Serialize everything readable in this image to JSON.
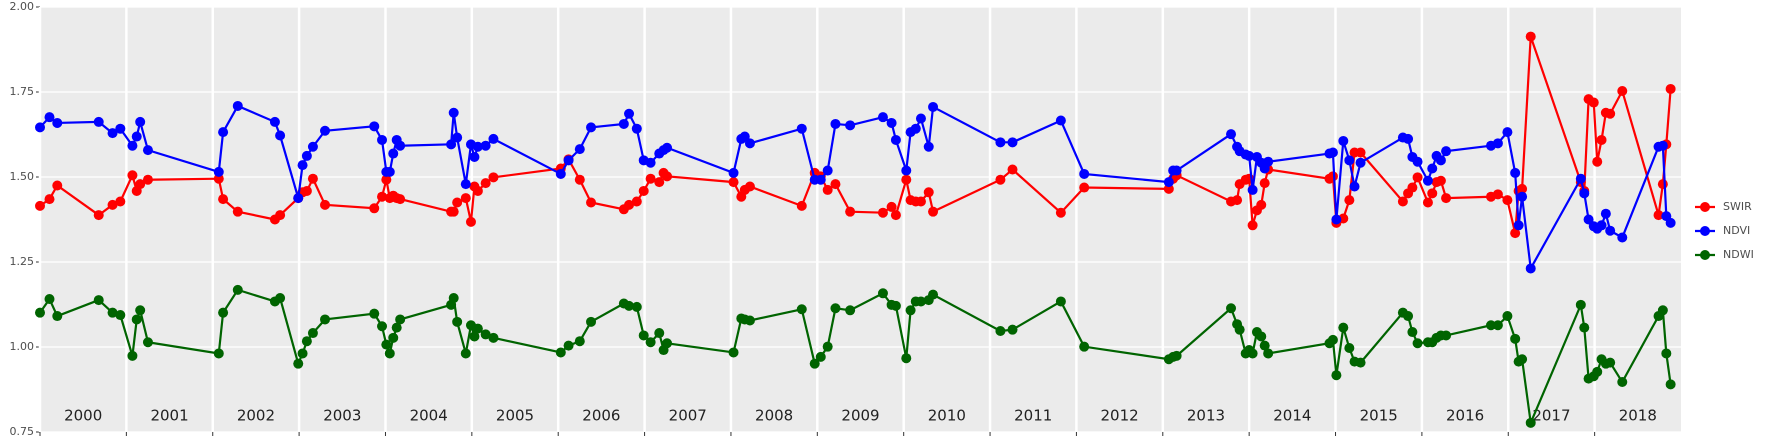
{
  "chart_data": {
    "type": "line",
    "x": [
      2000.0,
      2000.11,
      2000.2,
      2000.68,
      2000.84,
      2000.93,
      2001.07,
      2001.12,
      2001.16,
      2001.25,
      2002.07,
      2002.12,
      2002.29,
      2002.72,
      2002.78,
      2002.99,
      2003.04,
      2003.09,
      2003.16,
      2003.3,
      2003.87,
      2003.96,
      2004.01,
      2004.05,
      2004.09,
      2004.13,
      2004.17,
      2004.76,
      2004.79,
      2004.83,
      2004.93,
      2004.99,
      2005.03,
      2005.07,
      2005.16,
      2005.25,
      2006.03,
      2006.12,
      2006.25,
      2006.38,
      2006.76,
      2006.82,
      2006.91,
      2006.99,
      2007.07,
      2007.17,
      2007.22,
      2007.26,
      2008.03,
      2008.12,
      2008.16,
      2008.22,
      2008.82,
      2008.97,
      2009.04,
      2009.12,
      2009.21,
      2009.38,
      2009.76,
      2009.86,
      2009.91,
      2010.03,
      2010.08,
      2010.14,
      2010.2,
      2010.29,
      2010.34,
      2011.12,
      2011.26,
      2011.82,
      2012.09,
      2013.07,
      2013.12,
      2013.16,
      2013.79,
      2013.86,
      2013.89,
      2013.96,
      2014.0,
      2014.04,
      2014.09,
      2014.14,
      2014.18,
      2014.22,
      2014.93,
      2014.97,
      2015.01,
      2015.09,
      2015.16,
      2015.22,
      2015.29,
      2015.78,
      2015.84,
      2015.89,
      2015.95,
      2016.07,
      2016.12,
      2016.17,
      2016.22,
      2016.28,
      2016.8,
      2016.88,
      2016.99,
      2017.08,
      2017.12,
      2017.16,
      2017.26,
      2017.84,
      2017.88,
      2017.93,
      2017.99,
      2018.03,
      2018.08,
      2018.13,
      2018.18,
      2018.32,
      2018.74,
      2018.79,
      2018.83,
      2018.88
    ],
    "series": [
      {
        "name": "SWIR",
        "color": "#ff0000",
        "values": [
          1.415,
          1.435,
          1.475,
          1.388,
          1.418,
          1.428,
          1.505,
          1.459,
          1.479,
          1.492,
          1.495,
          1.435,
          1.398,
          1.375,
          1.388,
          1.438,
          1.455,
          1.459,
          1.495,
          1.418,
          1.408,
          1.442,
          1.492,
          1.438,
          1.445,
          1.438,
          1.435,
          1.398,
          1.398,
          1.425,
          1.438,
          1.368,
          1.472,
          1.459,
          1.482,
          1.499,
          1.525,
          1.552,
          1.492,
          1.425,
          1.405,
          1.418,
          1.428,
          1.459,
          1.495,
          1.485,
          1.512,
          1.502,
          1.485,
          1.442,
          1.462,
          1.472,
          1.415,
          1.512,
          1.502,
          1.462,
          1.479,
          1.398,
          1.395,
          1.412,
          1.388,
          1.492,
          1.432,
          1.428,
          1.428,
          1.455,
          1.398,
          1.492,
          1.522,
          1.395,
          1.469,
          1.465,
          1.495,
          1.505,
          1.428,
          1.432,
          1.479,
          1.492,
          1.495,
          1.358,
          1.402,
          1.418,
          1.482,
          1.522,
          1.495,
          1.502,
          1.365,
          1.378,
          1.432,
          1.572,
          1.572,
          1.428,
          1.452,
          1.469,
          1.499,
          1.425,
          1.452,
          1.485,
          1.489,
          1.438,
          1.442,
          1.449,
          1.432,
          1.335,
          1.459,
          1.465,
          1.913,
          1.485,
          1.459,
          1.729,
          1.719,
          1.545,
          1.609,
          1.689,
          1.686,
          1.753,
          1.388,
          1.479,
          1.596,
          1.759
        ]
      },
      {
        "name": "NDVI",
        "color": "#0000ff",
        "values": [
          1.646,
          1.676,
          1.659,
          1.662,
          1.629,
          1.642,
          1.592,
          1.619,
          1.662,
          1.579,
          1.515,
          1.632,
          1.709,
          1.662,
          1.622,
          1.438,
          1.535,
          1.562,
          1.589,
          1.636,
          1.649,
          1.609,
          1.515,
          1.515,
          1.569,
          1.609,
          1.592,
          1.596,
          1.689,
          1.616,
          1.479,
          1.596,
          1.559,
          1.589,
          1.592,
          1.612,
          1.509,
          1.549,
          1.582,
          1.646,
          1.656,
          1.686,
          1.642,
          1.549,
          1.542,
          1.569,
          1.579,
          1.586,
          1.512,
          1.612,
          1.619,
          1.599,
          1.642,
          1.492,
          1.492,
          1.519,
          1.656,
          1.652,
          1.676,
          1.659,
          1.609,
          1.519,
          1.632,
          1.642,
          1.672,
          1.589,
          1.706,
          1.602,
          1.602,
          1.666,
          1.509,
          1.485,
          1.519,
          1.519,
          1.626,
          1.589,
          1.576,
          1.566,
          1.562,
          1.462,
          1.559,
          1.542,
          1.525,
          1.545,
          1.569,
          1.572,
          1.375,
          1.606,
          1.549,
          1.472,
          1.542,
          1.616,
          1.612,
          1.559,
          1.545,
          1.489,
          1.525,
          1.562,
          1.549,
          1.576,
          1.592,
          1.599,
          1.632,
          1.512,
          1.358,
          1.442,
          1.231,
          1.495,
          1.452,
          1.375,
          1.355,
          1.348,
          1.358,
          1.392,
          1.342,
          1.322,
          1.589,
          1.592,
          1.385,
          1.365
        ]
      },
      {
        "name": "NDWI",
        "color": "#006400",
        "values": [
          1.101,
          1.141,
          1.091,
          1.138,
          1.101,
          1.094,
          0.974,
          1.081,
          1.108,
          1.014,
          0.981,
          1.101,
          1.168,
          1.134,
          1.144,
          0.951,
          0.981,
          1.017,
          1.041,
          1.081,
          1.098,
          1.061,
          1.007,
          0.981,
          1.027,
          1.057,
          1.081,
          1.124,
          1.144,
          1.074,
          0.981,
          1.064,
          1.031,
          1.054,
          1.037,
          1.027,
          0.984,
          1.004,
          1.017,
          1.074,
          1.128,
          1.121,
          1.118,
          1.034,
          1.014,
          1.041,
          0.991,
          1.011,
          0.984,
          1.084,
          1.081,
          1.078,
          1.111,
          0.951,
          0.971,
          1.001,
          1.114,
          1.108,
          1.158,
          1.124,
          1.121,
          0.967,
          1.108,
          1.134,
          1.134,
          1.138,
          1.154,
          1.047,
          1.051,
          1.134,
          1.001,
          0.964,
          0.971,
          0.974,
          1.114,
          1.067,
          1.051,
          0.981,
          0.991,
          0.981,
          1.044,
          1.031,
          1.004,
          0.981,
          1.011,
          1.021,
          0.917,
          1.057,
          0.997,
          0.957,
          0.954,
          1.101,
          1.091,
          1.044,
          1.011,
          1.014,
          1.014,
          1.027,
          1.034,
          1.034,
          1.064,
          1.064,
          1.091,
          1.024,
          0.957,
          0.964,
          0.777,
          1.124,
          1.057,
          0.907,
          0.914,
          0.927,
          0.964,
          0.951,
          0.954,
          0.897,
          1.091,
          1.108,
          0.981,
          0.89
        ]
      }
    ],
    "xlim": [
      2000,
      2019
    ],
    "xticks": [
      2000,
      2001,
      2002,
      2003,
      2004,
      2005,
      2006,
      2007,
      2008,
      2009,
      2010,
      2011,
      2012,
      2013,
      2014,
      2015,
      2016,
      2017,
      2018
    ],
    "ylim": [
      0.75,
      2.0
    ],
    "yticks": [
      0.75,
      {
        "value": 1.0,
        "label": "1.00"
      },
      1.25,
      {
        "value": 1.5,
        "label": "1.50"
      },
      1.75,
      {
        "value": 2.0,
        "label": "2.00"
      }
    ],
    "grid": true,
    "legend": "right"
  }
}
